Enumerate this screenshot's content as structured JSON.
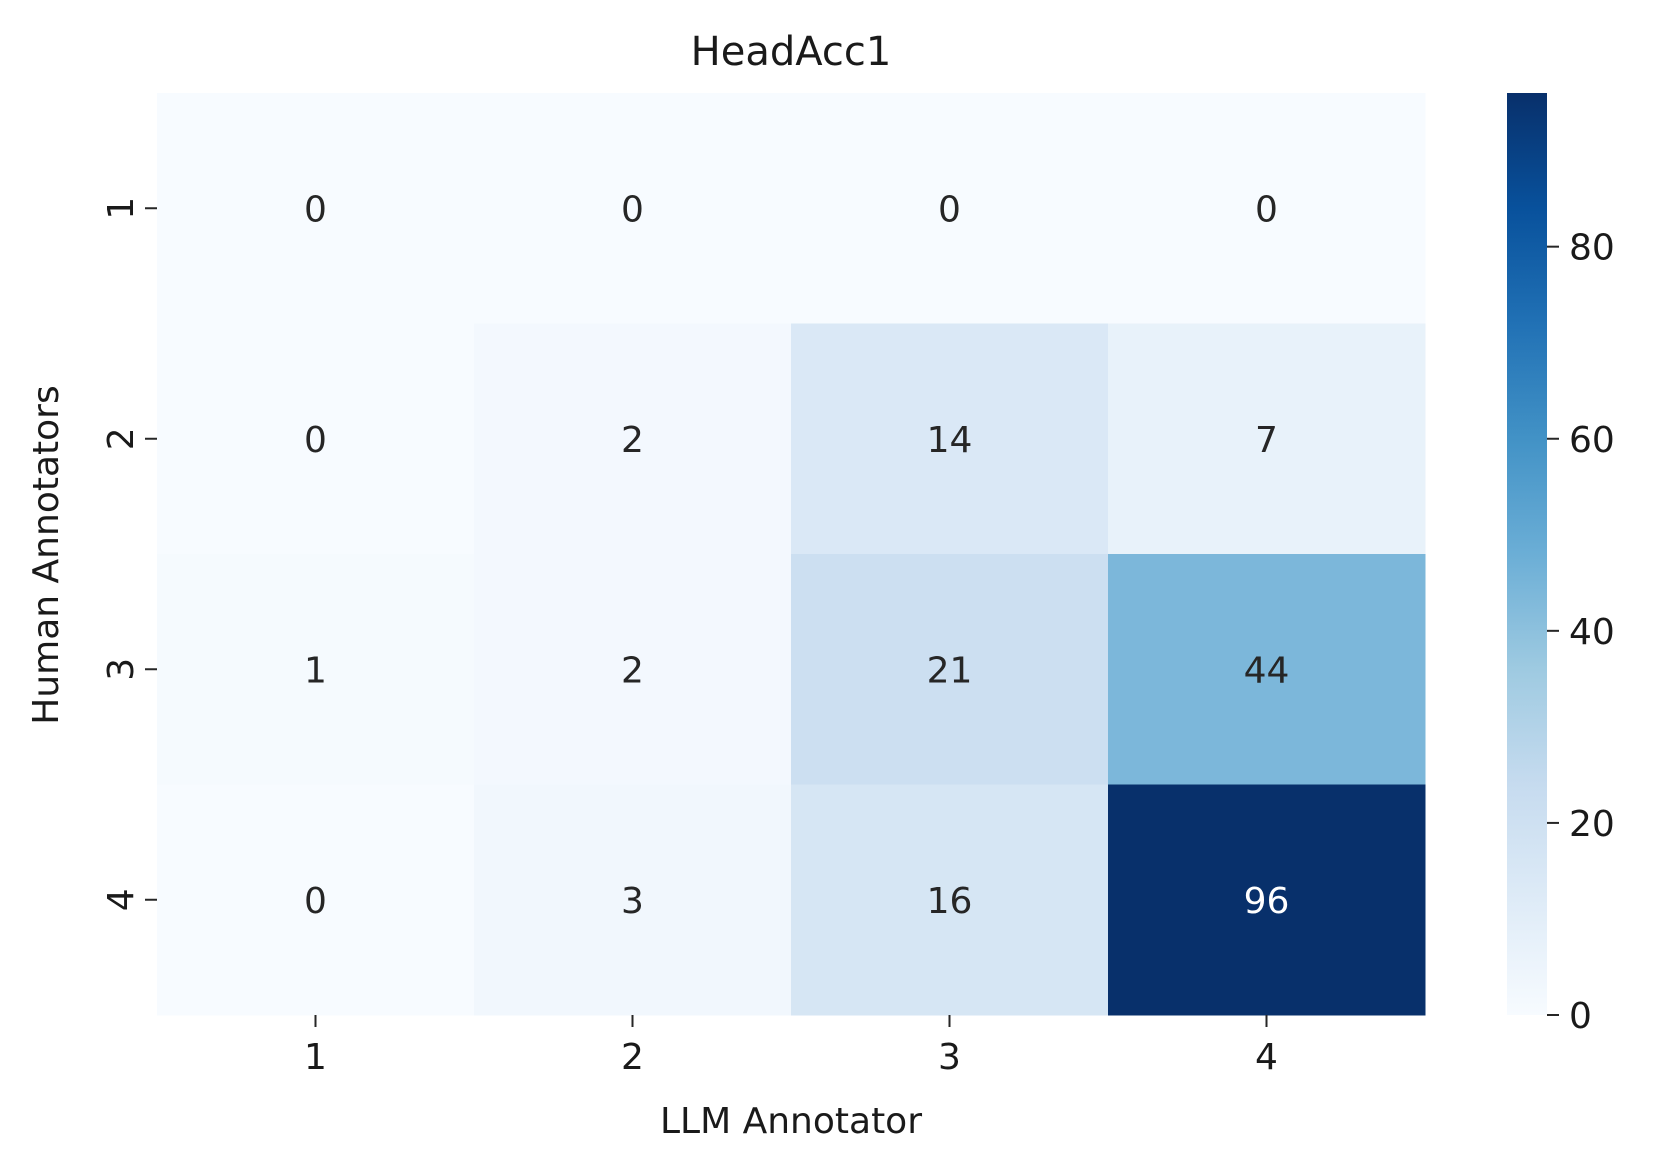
{
  "chart_data": {
    "type": "heatmap",
    "title": "HeadAcc1",
    "xlabel": "LLM Annotator",
    "ylabel": "Human Annotators",
    "x_categories": [
      "1",
      "2",
      "3",
      "4"
    ],
    "y_categories": [
      "1",
      "2",
      "3",
      "4"
    ],
    "values": [
      [
        0,
        0,
        0,
        0
      ],
      [
        0,
        2,
        14,
        7
      ],
      [
        1,
        2,
        21,
        44
      ],
      [
        0,
        3,
        16,
        96
      ]
    ],
    "colorbar": {
      "range": [
        0,
        96
      ],
      "ticks": [
        "0",
        "20",
        "40",
        "60",
        "80"
      ],
      "colormap": "Blues",
      "colors": [
        "#f7fbff",
        "#deebf7",
        "#c6dbef",
        "#9ecae1",
        "#6baed6",
        "#4292c6",
        "#2171b5",
        "#08519c",
        "#08306b"
      ]
    },
    "grid": false
  }
}
